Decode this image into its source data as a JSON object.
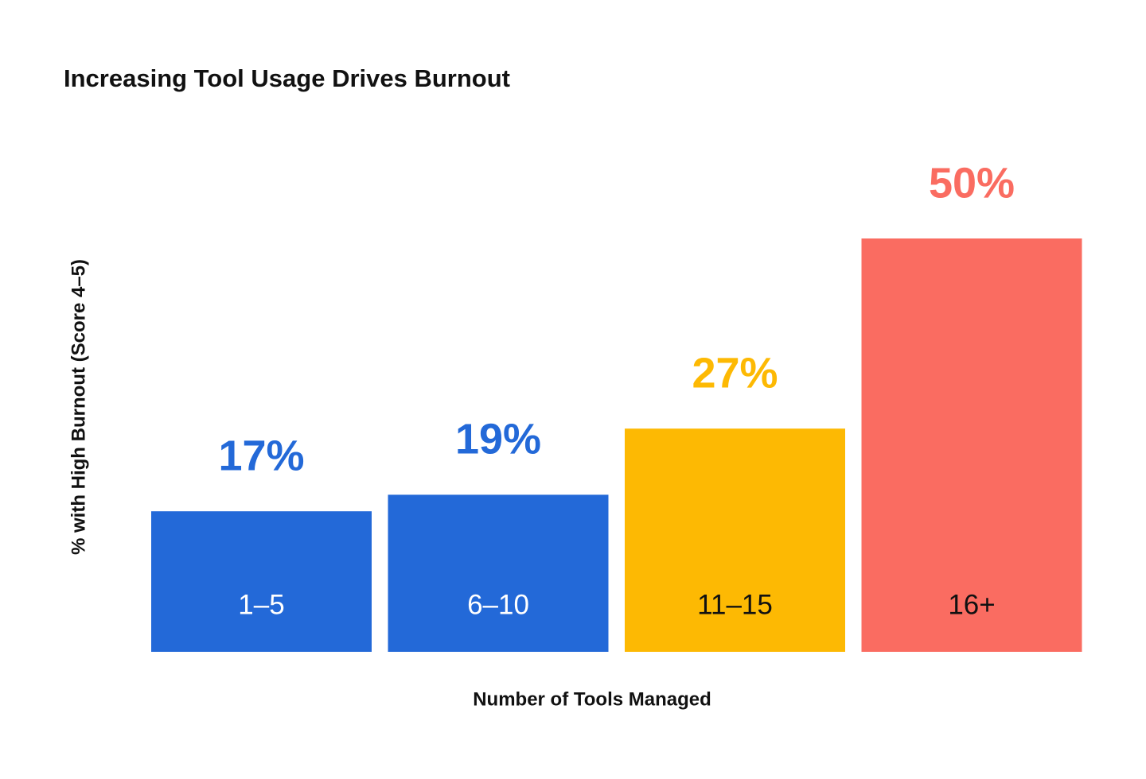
{
  "chart_data": {
    "type": "bar",
    "title": "Increasing Tool Usage Drives Burnout",
    "x_label": "Number of Tools Managed",
    "y_label": "% with High Burnout (Score 4–5)",
    "categories": [
      "1–5",
      "6–10",
      "11–15",
      "16+"
    ],
    "values": [
      17,
      19,
      27,
      50
    ],
    "value_labels": [
      "17%",
      "19%",
      "27%",
      "50%"
    ],
    "colors": [
      "#2369d8",
      "#2369d8",
      "#fdb903",
      "#fa6c61"
    ]
  }
}
